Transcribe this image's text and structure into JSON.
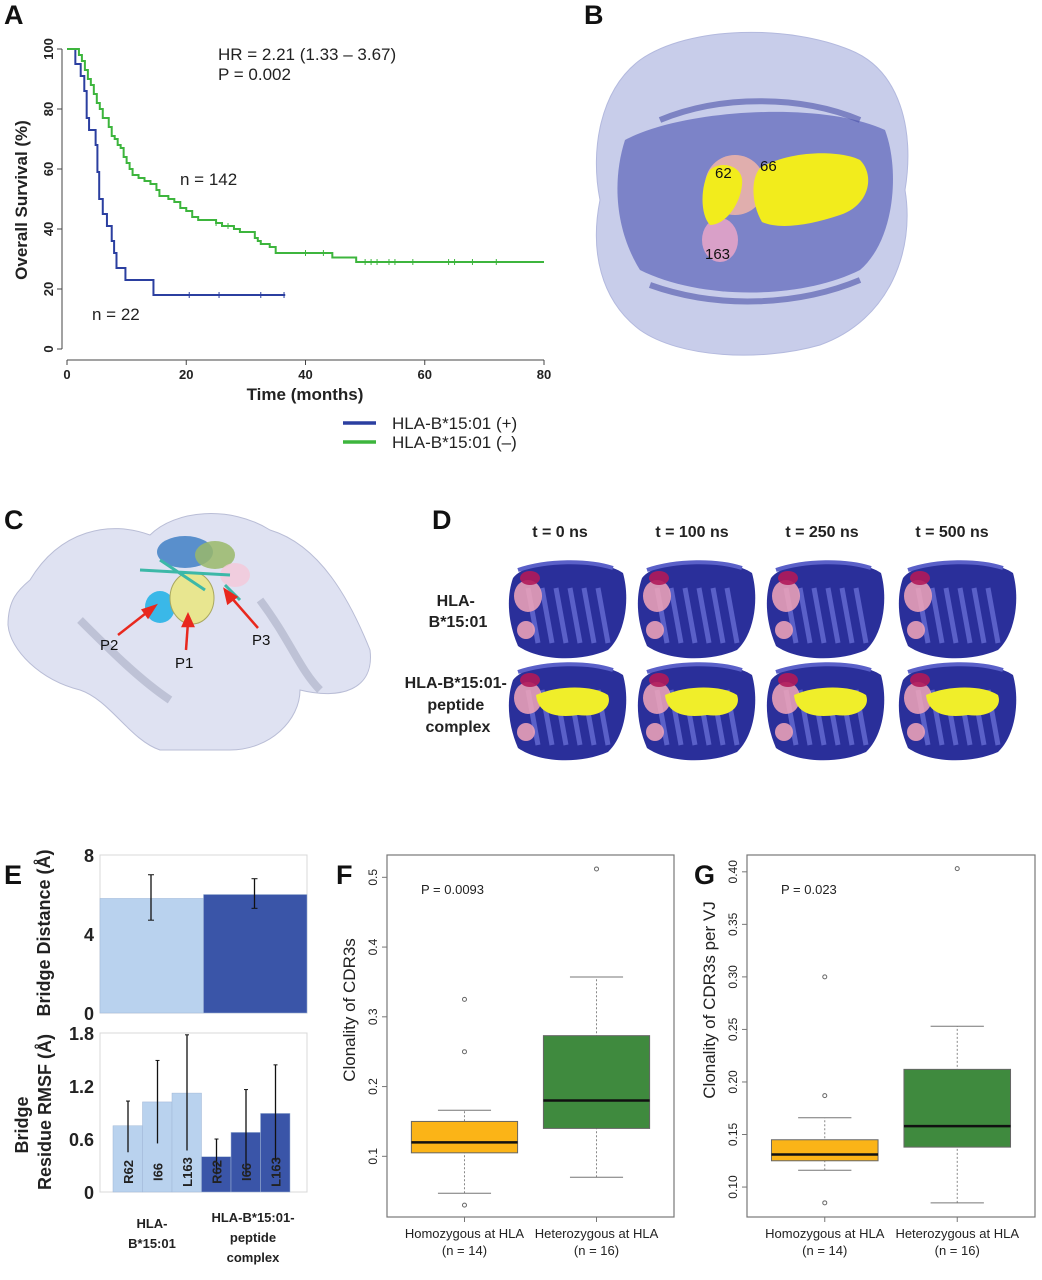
{
  "panels": {
    "A": "A",
    "B": "B",
    "C": "C",
    "D": "D",
    "E": "E",
    "F": "F",
    "G": "G"
  },
  "colors": {
    "km_pos": "#2b3fa0",
    "km_neg": "#3db53d",
    "e_light": "#b9d2ee",
    "e_dark": "#3a55a8",
    "box_homo": "#fbb417",
    "box_het": "#3f8a3e",
    "surface": "#c9cfea",
    "cartoon": "#2a2f9a",
    "peptide": "#f0ee2a",
    "bridge": "#f3a6b8"
  },
  "panel_b": {
    "residue_labels": [
      "62",
      "66",
      "163"
    ]
  },
  "panel_c": {
    "pocket_labels": [
      "P2",
      "P1",
      "P3"
    ]
  },
  "panel_d": {
    "times": [
      "t = 0 ns",
      "t = 100 ns",
      "t = 250 ns",
      "t = 500 ns"
    ],
    "row1_label": [
      "HLA-",
      "B*15:01"
    ],
    "row2_label": [
      "HLA-B*15:01-",
      "peptide",
      "complex"
    ]
  },
  "chart_data": [
    {
      "id": "km",
      "type": "line",
      "title": "",
      "xlabel": "Time (months)",
      "ylabel": "Overall Survival (%)",
      "xlim": [
        0,
        80
      ],
      "ylim": [
        0,
        100
      ],
      "xticks": [
        "0",
        "20",
        "40",
        "60",
        "80"
      ],
      "yticks": [
        "0",
        "20",
        "40",
        "60",
        "80",
        "100"
      ],
      "annotations": [
        "HR = 2.21 (1.33 – 3.67)",
        "P = 0.002",
        "n = 142",
        "n = 22"
      ],
      "legend": {
        "placement": "bottom-right",
        "entries": [
          "HLA-B*15:01 (+)",
          "HLA-B*15:01 (–)"
        ]
      },
      "series": [
        {
          "name": "HLA-B*15:01 (+)",
          "n": 22,
          "points": [
            [
              0,
              100
            ],
            [
              1.4,
              100
            ],
            [
              1.4,
              95
            ],
            [
              2.3,
              95
            ],
            [
              2.3,
              91
            ],
            [
              2.9,
              91
            ],
            [
              2.9,
              86
            ],
            [
              3.3,
              86
            ],
            [
              3.3,
              77
            ],
            [
              3.7,
              77
            ],
            [
              3.7,
              73
            ],
            [
              4.8,
              73
            ],
            [
              4.8,
              68
            ],
            [
              5.1,
              68
            ],
            [
              5.1,
              59
            ],
            [
              5.4,
              59
            ],
            [
              5.4,
              50
            ],
            [
              6,
              50
            ],
            [
              6,
              45
            ],
            [
              6.7,
              45
            ],
            [
              6.7,
              41
            ],
            [
              7.5,
              41
            ],
            [
              7.5,
              36
            ],
            [
              7.9,
              36
            ],
            [
              7.9,
              32
            ],
            [
              8.3,
              32
            ],
            [
              8.3,
              27
            ],
            [
              9.8,
              27
            ],
            [
              9.8,
              23
            ],
            [
              14.5,
              23
            ],
            [
              14.5,
              18
            ],
            [
              36.6,
              18
            ]
          ],
          "censored": [
            20.5,
            25.5,
            32.5,
            36.4
          ]
        },
        {
          "name": "HLA-B*15:01 (–)",
          "n": 142,
          "points": [
            [
              0,
              100
            ],
            [
              1.5,
              100
            ],
            [
              2,
              98
            ],
            [
              2.5,
              96
            ],
            [
              3,
              93
            ],
            [
              3.5,
              90
            ],
            [
              4,
              88
            ],
            [
              4.5,
              85
            ],
            [
              5,
              82
            ],
            [
              5.5,
              80
            ],
            [
              6,
              77
            ],
            [
              7,
              74
            ],
            [
              7.5,
              71
            ],
            [
              8,
              70
            ],
            [
              8.5,
              68
            ],
            [
              9,
              67
            ],
            [
              9.5,
              64
            ],
            [
              10,
              62
            ],
            [
              10.5,
              60
            ],
            [
              11,
              58
            ],
            [
              12,
              57
            ],
            [
              13,
              56
            ],
            [
              14,
              55
            ],
            [
              15,
              53
            ],
            [
              15.5,
              51
            ],
            [
              17,
              50
            ],
            [
              18,
              49
            ],
            [
              19,
              47
            ],
            [
              20,
              46
            ],
            [
              21,
              44
            ],
            [
              22,
              43
            ],
            [
              24,
              43
            ],
            [
              25,
              42
            ],
            [
              26,
              41
            ],
            [
              28,
              40
            ],
            [
              29,
              39
            ],
            [
              31,
              39
            ],
            [
              31.5,
              37
            ],
            [
              32,
              36
            ],
            [
              32.5,
              35
            ],
            [
              33,
              35
            ],
            [
              34,
              34
            ],
            [
              35,
              32
            ],
            [
              44,
              32
            ],
            [
              44.5,
              30.5
            ],
            [
              48.5,
              30.5
            ],
            [
              48.5,
              29
            ],
            [
              80,
              29
            ]
          ],
          "censored": [
            25,
            27,
            40,
            43,
            50,
            51,
            52,
            54,
            55,
            58,
            64,
            65,
            68,
            72
          ]
        }
      ]
    },
    {
      "id": "e_top",
      "type": "bar",
      "ylabel": "Bridge Distance (Å)",
      "ylim": [
        0,
        8
      ],
      "yticks": [
        "0",
        "4",
        "8"
      ],
      "categories": [
        "HLA-B*15:01",
        "HLA-B*15:01-peptide complex"
      ],
      "values": [
        5.8,
        6.0
      ],
      "errors": [
        [
          4.7,
          7.0
        ],
        [
          5.3,
          6.8
        ]
      ]
    },
    {
      "id": "e_bottom",
      "type": "bar",
      "ylabel": [
        "Bridge",
        "Residue RMSF (Å)"
      ],
      "ylim": [
        0,
        1.8
      ],
      "yticks": [
        "0",
        "0.6",
        "1.2",
        "1.8"
      ],
      "groups": [
        {
          "label": [
            "HLA-",
            "B*15:01"
          ],
          "residues": [
            "R62",
            "I66",
            "L163"
          ],
          "values": [
            0.75,
            1.02,
            1.12
          ],
          "errors": [
            [
              0.45,
              1.03
            ],
            [
              0.55,
              1.49
            ],
            [
              0.47,
              1.78
            ]
          ]
        },
        {
          "label": [
            "HLA-B*15:01-",
            "peptide",
            "complex"
          ],
          "residues": [
            "R62",
            "I66",
            "L163"
          ],
          "values": [
            0.4,
            0.675,
            0.89
          ],
          "errors": [
            [
              0.2,
              0.6
            ],
            [
              0.2,
              1.16
            ],
            [
              0.35,
              1.44
            ]
          ]
        }
      ]
    },
    {
      "id": "f",
      "type": "box",
      "ylabel": "Clonality of CDR3s",
      "ylim": [
        0.013,
        0.532
      ],
      "yticks": [
        "0.1",
        "0.2",
        "0.3",
        "0.4",
        "0.5"
      ],
      "annotation": "P = 0.0093",
      "groups": [
        {
          "label": "Homozygous at HLA",
          "n": "(n = 14)",
          "whisker_low": 0.047,
          "q1": 0.105,
          "median": 0.12,
          "q3": 0.15,
          "whisker_high": 0.166,
          "outliers": [
            0.325,
            0.25,
            0.03
          ]
        },
        {
          "label": "Heterozygous at HLA",
          "n": "(n = 16)",
          "whisker_low": 0.07,
          "q1": 0.14,
          "median": 0.18,
          "q3": 0.273,
          "whisker_high": 0.357,
          "outliers": [
            0.512
          ]
        }
      ]
    },
    {
      "id": "g",
      "type": "box",
      "ylabel": "Clonality of CDR3s per VJ",
      "ylim": [
        0.0715,
        0.416
      ],
      "yticks": [
        "0.10",
        "0.15",
        "0.20",
        "0.25",
        "0.30",
        "0.35",
        "0.40"
      ],
      "annotation": "P = 0.023",
      "groups": [
        {
          "label": "Homozygous at HLA",
          "n": "(n = 14)",
          "whisker_low": 0.116,
          "q1": 0.125,
          "median": 0.131,
          "q3": 0.145,
          "whisker_high": 0.166,
          "outliers": [
            0.3,
            0.187,
            0.085
          ]
        },
        {
          "label": "Heterozygous at HLA",
          "n": "(n = 16)",
          "whisker_low": 0.085,
          "q1": 0.138,
          "median": 0.158,
          "q3": 0.212,
          "whisker_high": 0.253,
          "outliers": [
            0.403
          ]
        }
      ]
    }
  ]
}
